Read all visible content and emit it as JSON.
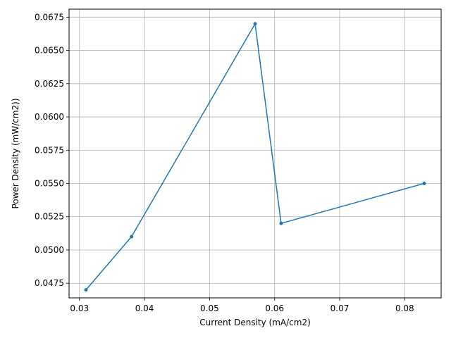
{
  "chart_data": {
    "type": "line",
    "title": "",
    "xlabel": "Current Density (mA/cm2)",
    "ylabel": "Power Density (mW/cm2))",
    "xlim": [
      0.0284,
      0.0856
    ],
    "ylim": [
      0.0464,
      0.0681
    ],
    "x_ticks": [
      0.03,
      0.04,
      0.05,
      0.06,
      0.07,
      0.08
    ],
    "x_tick_labels": [
      "0.03",
      "0.04",
      "0.05",
      "0.06",
      "0.07",
      "0.08"
    ],
    "y_ticks": [
      0.0475,
      0.05,
      0.0525,
      0.055,
      0.0575,
      0.06,
      0.0625,
      0.065,
      0.0675
    ],
    "y_tick_labels": [
      "0.0475",
      "0.0500",
      "0.0525",
      "0.0550",
      "0.0575",
      "0.0600",
      "0.0625",
      "0.0650",
      "0.0675"
    ],
    "grid": true,
    "marker": "dot",
    "series": [
      {
        "x": [
          0.031,
          0.038,
          0.057,
          0.061,
          0.083
        ],
        "y": [
          0.047,
          0.051,
          0.067,
          0.052,
          0.055
        ],
        "color": "#1f77b4"
      }
    ]
  }
}
